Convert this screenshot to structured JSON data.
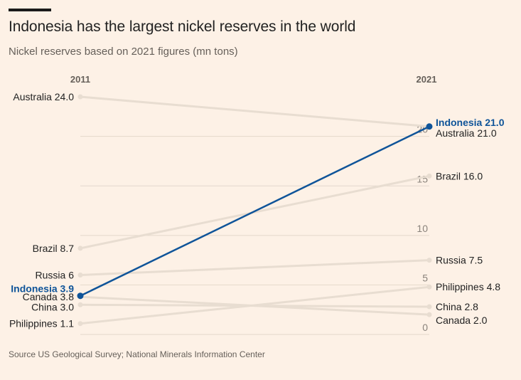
{
  "title": "Indonesia has the largest nickel reserves in the world",
  "subtitle": "Nickel reserves based on 2021 figures (mn tons)",
  "source": "Source US Geological Survey; National Minerals Information Center",
  "chart_data": {
    "type": "line",
    "chart_kind": "slope",
    "x": [
      "2011",
      "2021"
    ],
    "ylim": [
      0,
      24
    ],
    "yticks": [
      "0",
      "5",
      "10",
      "15",
      "20"
    ],
    "grid": true,
    "colors": {
      "highlight": "#0f5499",
      "muted": "#e8ddd1",
      "background": "#fdf1e6"
    },
    "series": [
      {
        "name": "Australia",
        "values": [
          24.0,
          21.0
        ],
        "labels": [
          "Australia 24.0",
          "Australia 21.0"
        ],
        "highlight": false
      },
      {
        "name": "Brazil",
        "values": [
          8.7,
          16.0
        ],
        "labels": [
          "Brazil 8.7",
          "Brazil 16.0"
        ],
        "highlight": false
      },
      {
        "name": "Russia",
        "values": [
          6,
          7.5
        ],
        "labels": [
          "Russia 6",
          "Russia 7.5"
        ],
        "highlight": false
      },
      {
        "name": "Canada",
        "values": [
          3.8,
          2.0
        ],
        "labels": [
          "Canada 3.8",
          "Canada 2.0"
        ],
        "highlight": false
      },
      {
        "name": "China",
        "values": [
          3.0,
          2.8
        ],
        "labels": [
          "China 3.0",
          "China 2.8"
        ],
        "highlight": false
      },
      {
        "name": "Philippines",
        "values": [
          1.1,
          4.8
        ],
        "labels": [
          "Philippines 1.1",
          "Philippines 4.8"
        ],
        "highlight": false
      },
      {
        "name": "Indonesia",
        "values": [
          3.9,
          21.0
        ],
        "labels": [
          "Indonesia 3.9",
          "Indonesia 21.0"
        ],
        "highlight": true
      }
    ]
  }
}
